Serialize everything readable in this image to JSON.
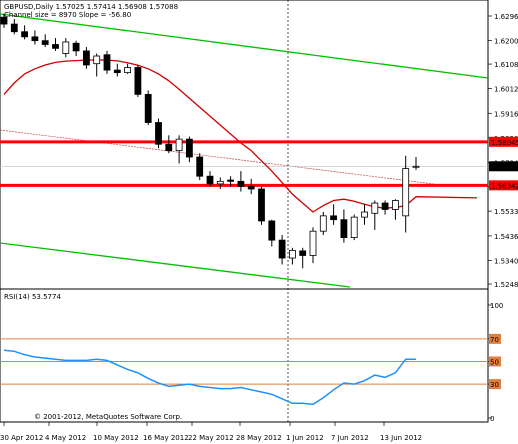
{
  "header": {
    "instrument_line": "GBPUSD,Daily  1.57025 1.57414 1.56908 1.57088",
    "channel_line": "Channel size = 8970 Slope = -56.80"
  },
  "rsi_header": "RSI(14) 53.5774",
  "copyright": "© 2001-2012, MetaQuotes Software Corp.",
  "price_axis": {
    "ticks": [
      "1.62965",
      "1.62005",
      "1.61085",
      "1.60125",
      "1.59160",
      "1.58200",
      "1.57240",
      "1.56280",
      "1.55335",
      "1.54365",
      "1.53405",
      "1.52485"
    ],
    "values": [
      1.62965,
      1.62005,
      1.61085,
      1.60125,
      1.5916,
      1.582,
      1.5724,
      1.5628,
      1.55335,
      1.54365,
      1.53405,
      1.52485
    ]
  },
  "price_levels": {
    "resistance": "1.58045",
    "resistance_value": 1.58045,
    "current": "1.57088",
    "current_value": 1.57088,
    "support": "1.56342",
    "support_value": 1.56342
  },
  "rsi_axis": {
    "ticks": [
      "100",
      "70",
      "50",
      "30",
      "0"
    ],
    "levels": [
      70,
      50,
      30
    ]
  },
  "date_axis": [
    "30 Apr 2012",
    "4 May 2012",
    "10 May 2012",
    "16 May 2012",
    "22 May 2012",
    "28 May 2012",
    "1 Jun 2012",
    "7 Jun 2012",
    "13 Jun 2012"
  ],
  "colors": {
    "bg": "#ffffff",
    "grid": "#c0c0c0",
    "level_line": "#ff0000",
    "ma_line": "#d00000",
    "channel": "#00c000",
    "rsi_line": "#1e90ff",
    "rsi_level": "#e08040",
    "candle_up": "#ffffff",
    "candle_down": "#000000"
  },
  "chart_data": {
    "type": "candlestick",
    "candles": [
      {
        "o": 1.6292,
        "h": 1.6305,
        "l": 1.625,
        "c": 1.6265
      },
      {
        "o": 1.6265,
        "h": 1.6285,
        "l": 1.6225,
        "c": 1.6235
      },
      {
        "o": 1.6235,
        "h": 1.626,
        "l": 1.6205,
        "c": 1.6215
      },
      {
        "o": 1.6215,
        "h": 1.624,
        "l": 1.6185,
        "c": 1.62
      },
      {
        "o": 1.62,
        "h": 1.6225,
        "l": 1.6175,
        "c": 1.6185
      },
      {
        "o": 1.6185,
        "h": 1.621,
        "l": 1.616,
        "c": 1.617
      },
      {
        "o": 1.615,
        "h": 1.621,
        "l": 1.6135,
        "c": 1.6195
      },
      {
        "o": 1.619,
        "h": 1.62,
        "l": 1.614,
        "c": 1.616
      },
      {
        "o": 1.616,
        "h": 1.6175,
        "l": 1.609,
        "c": 1.6105
      },
      {
        "o": 1.611,
        "h": 1.615,
        "l": 1.606,
        "c": 1.614
      },
      {
        "o": 1.6145,
        "h": 1.616,
        "l": 1.607,
        "c": 1.6085
      },
      {
        "o": 1.6085,
        "h": 1.611,
        "l": 1.606,
        "c": 1.6075
      },
      {
        "o": 1.6075,
        "h": 1.611,
        "l": 1.607,
        "c": 1.6095
      },
      {
        "o": 1.6095,
        "h": 1.6105,
        "l": 1.598,
        "c": 1.599
      },
      {
        "o": 1.599,
        "h": 1.6005,
        "l": 1.587,
        "c": 1.588
      },
      {
        "o": 1.588,
        "h": 1.5895,
        "l": 1.578,
        "c": 1.5795
      },
      {
        "o": 1.5795,
        "h": 1.583,
        "l": 1.576,
        "c": 1.577
      },
      {
        "o": 1.577,
        "h": 1.583,
        "l": 1.572,
        "c": 1.5815
      },
      {
        "o": 1.5815,
        "h": 1.5825,
        "l": 1.5725,
        "c": 1.5745
      },
      {
        "o": 1.5745,
        "h": 1.576,
        "l": 1.5655,
        "c": 1.567
      },
      {
        "o": 1.567,
        "h": 1.569,
        "l": 1.563,
        "c": 1.564
      },
      {
        "o": 1.564,
        "h": 1.5665,
        "l": 1.562,
        "c": 1.565
      },
      {
        "o": 1.5655,
        "h": 1.567,
        "l": 1.563,
        "c": 1.565
      },
      {
        "o": 1.565,
        "h": 1.569,
        "l": 1.561,
        "c": 1.563
      },
      {
        "o": 1.563,
        "h": 1.566,
        "l": 1.56,
        "c": 1.562
      },
      {
        "o": 1.562,
        "h": 1.563,
        "l": 1.548,
        "c": 1.5495
      },
      {
        "o": 1.5495,
        "h": 1.55,
        "l": 1.5395,
        "c": 1.542
      },
      {
        "o": 1.542,
        "h": 1.544,
        "l": 1.5325,
        "c": 1.535
      },
      {
        "o": 1.535,
        "h": 1.539,
        "l": 1.5325,
        "c": 1.538
      },
      {
        "o": 1.5378,
        "h": 1.539,
        "l": 1.531,
        "c": 1.536
      },
      {
        "o": 1.536,
        "h": 1.547,
        "l": 1.533,
        "c": 1.5455
      },
      {
        "o": 1.5455,
        "h": 1.553,
        "l": 1.544,
        "c": 1.5515
      },
      {
        "o": 1.5515,
        "h": 1.556,
        "l": 1.548,
        "c": 1.55
      },
      {
        "o": 1.55,
        "h": 1.554,
        "l": 1.541,
        "c": 1.543
      },
      {
        "o": 1.543,
        "h": 1.552,
        "l": 1.542,
        "c": 1.551
      },
      {
        "o": 1.551,
        "h": 1.556,
        "l": 1.548,
        "c": 1.553
      },
      {
        "o": 1.5525,
        "h": 1.5575,
        "l": 1.546,
        "c": 1.5565
      },
      {
        "o": 1.5565,
        "h": 1.5575,
        "l": 1.552,
        "c": 1.554
      },
      {
        "o": 1.554,
        "h": 1.558,
        "l": 1.55,
        "c": 1.5575
      },
      {
        "o": 1.5515,
        "h": 1.575,
        "l": 1.545,
        "c": 1.57
      },
      {
        "o": 1.5705,
        "h": 1.5745,
        "l": 1.5695,
        "c": 1.5709
      }
    ],
    "ma": [
      1.599,
      1.6035,
      1.607,
      1.609,
      1.6105,
      1.6115,
      1.612,
      1.6122,
      1.6124,
      1.6125,
      1.6124,
      1.6121,
      1.6114,
      1.6104,
      1.609,
      1.607,
      1.6043,
      1.601,
      1.5975,
      1.594,
      1.5905,
      1.587,
      1.5835,
      1.58,
      1.577,
      1.573,
      1.569,
      1.5645,
      1.56,
      1.5565,
      1.553,
      1.5555,
      1.5575,
      1.558,
      1.5572,
      1.556,
      1.555,
      1.5545,
      1.5548,
      1.5555,
      1.559
    ],
    "rsi": [
      60,
      59,
      56,
      54,
      53,
      52,
      51,
      51,
      51,
      52,
      51,
      47,
      43,
      40,
      35,
      31,
      28,
      29,
      30,
      28,
      27,
      26,
      26,
      27,
      25,
      23,
      21,
      17,
      13,
      13,
      12,
      18,
      25,
      31,
      30,
      33,
      38,
      36,
      40,
      52,
      52
    ]
  }
}
